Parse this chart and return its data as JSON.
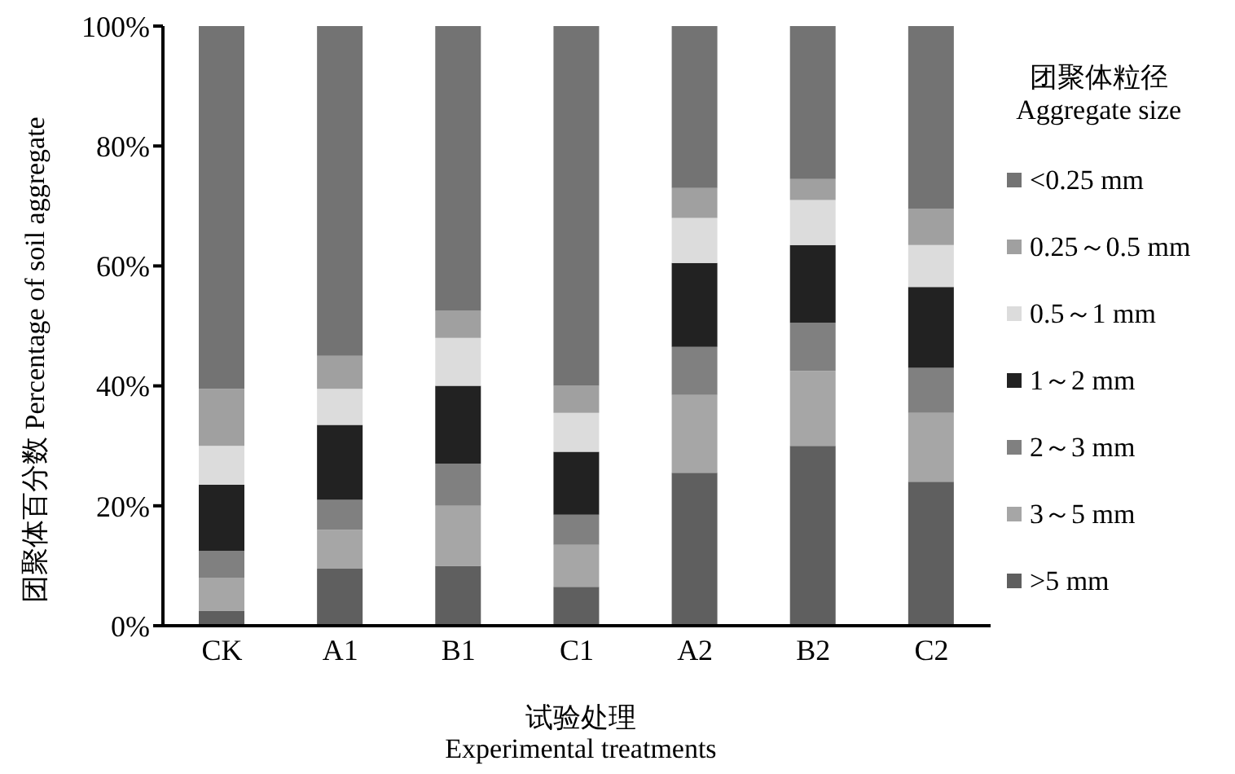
{
  "chart_data": {
    "type": "bar",
    "stacked": true,
    "xlabel": "试验处理\nExperimental treatments",
    "ylabel": "团聚体百分数 Percentage of soil aggregate",
    "legend_title": "团聚体粒径\nAggregate size",
    "legend": "right",
    "grid": false,
    "categories": [
      "CK",
      "A1",
      "B1",
      "C1",
      "A2",
      "B2",
      "C2"
    ],
    "ylim": [
      0,
      100
    ],
    "yticks": [
      {
        "value": 0,
        "label": "0%"
      },
      {
        "value": 20,
        "label": "20%"
      },
      {
        "value": 40,
        "label": "40%"
      },
      {
        "value": 60,
        "label": "60%"
      },
      {
        "value": 80,
        "label": "80%"
      },
      {
        "value": 100,
        "label": "100%"
      }
    ],
    "series": [
      {
        "name": ">5 mm",
        "color": "#5f5f5f",
        "values": [
          2.5,
          9.5,
          10,
          6.5,
          25.5,
          30,
          24
        ]
      },
      {
        "name": "3～5 mm",
        "color": "#a6a6a6",
        "values": [
          5.5,
          6.5,
          10,
          7,
          13,
          12.5,
          11.5
        ]
      },
      {
        "name": "2～3 mm",
        "color": "#808080",
        "values": [
          4.5,
          5,
          7,
          5,
          8,
          8,
          7.5
        ]
      },
      {
        "name": "1～2 mm",
        "color": "#222222",
        "values": [
          11,
          12.5,
          13,
          10.5,
          14,
          13,
          13.5
        ]
      },
      {
        "name": "0.5～1 mm",
        "color": "#dcdcdc",
        "values": [
          6.5,
          6,
          8,
          6.5,
          7.5,
          7.5,
          7
        ]
      },
      {
        "name": "0.25～0.5 mm",
        "color": "#a0a0a0",
        "values": [
          9.5,
          5.5,
          4.5,
          4.5,
          5,
          3.5,
          6
        ]
      },
      {
        "name": "<0.25 mm",
        "color": "#737373",
        "values": [
          60.5,
          55,
          47.5,
          60,
          27,
          25.5,
          30.5
        ]
      }
    ]
  }
}
